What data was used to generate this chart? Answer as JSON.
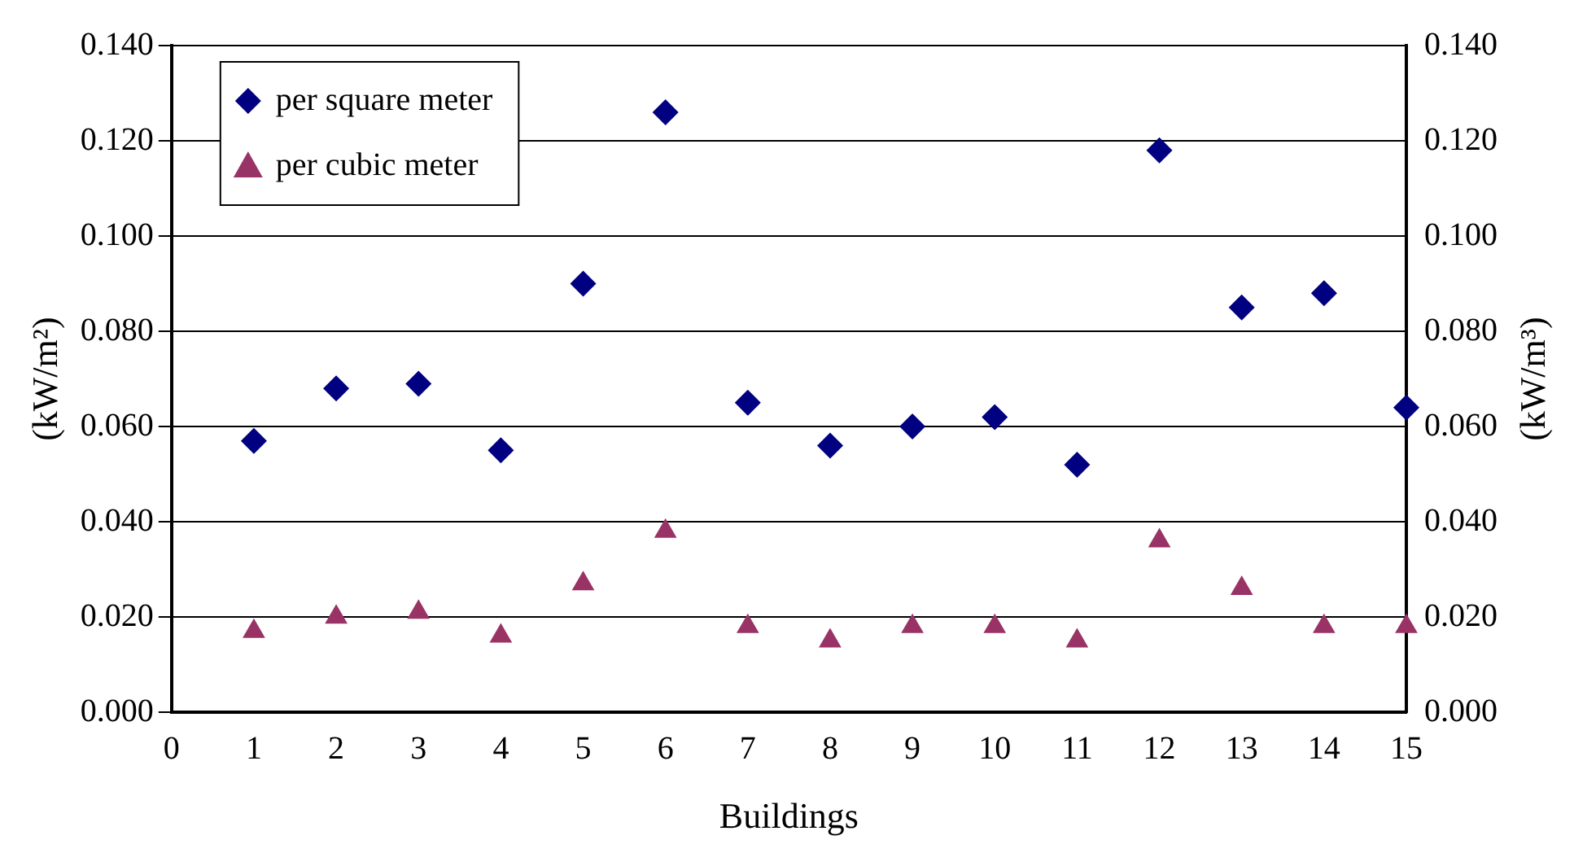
{
  "chart_data": {
    "type": "scatter",
    "xlabel": "Buildings",
    "ylabel": "(kW/m²)",
    "y2label": "(kW/m³)",
    "x": [
      1,
      2,
      3,
      4,
      5,
      6,
      7,
      8,
      9,
      10,
      11,
      12,
      13,
      14,
      15
    ],
    "series": [
      {
        "name": "per square meter",
        "color": "#000080",
        "marker": "diamond",
        "values": [
          0.057,
          0.068,
          0.069,
          0.055,
          0.09,
          0.126,
          0.065,
          0.056,
          0.06,
          0.062,
          0.052,
          0.118,
          0.085,
          0.088,
          0.064
        ]
      },
      {
        "name": "per cubic meter",
        "color": "#993366",
        "marker": "triangle",
        "values": [
          0.017,
          0.02,
          0.021,
          0.016,
          0.027,
          0.038,
          0.018,
          0.015,
          0.018,
          0.018,
          0.015,
          0.036,
          0.026,
          0.018,
          0.018
        ]
      }
    ],
    "xlim": [
      0,
      15
    ],
    "xticks": [
      0,
      1,
      2,
      3,
      4,
      5,
      6,
      7,
      8,
      9,
      10,
      11,
      12,
      13,
      14,
      15
    ],
    "ylim": [
      0,
      0.14
    ],
    "yticks": [
      {
        "value": 0,
        "label": "0.000"
      },
      {
        "value": 0.02,
        "label": "0.020"
      },
      {
        "value": 0.04,
        "label": "0.040"
      },
      {
        "value": 0.06,
        "label": "0.060"
      },
      {
        "value": 0.08,
        "label": "0.080"
      },
      {
        "value": 0.1,
        "label": "0.100"
      },
      {
        "value": 0.12,
        "label": "0.120"
      },
      {
        "value": 0.14,
        "label": "0.140"
      }
    ],
    "y2lim": [
      0,
      0.14
    ],
    "y2ticks": [
      {
        "value": 0,
        "label": "0.000"
      },
      {
        "value": 0.02,
        "label": "0.020"
      },
      {
        "value": 0.04,
        "label": "0.040"
      },
      {
        "value": 0.06,
        "label": "0.060"
      },
      {
        "value": 0.08,
        "label": "0.080"
      },
      {
        "value": 0.1,
        "label": "0.100"
      },
      {
        "value": 0.12,
        "label": "0.120"
      },
      {
        "value": 0.14,
        "label": "0.140"
      }
    ],
    "grid": "y",
    "legend": "top left"
  }
}
